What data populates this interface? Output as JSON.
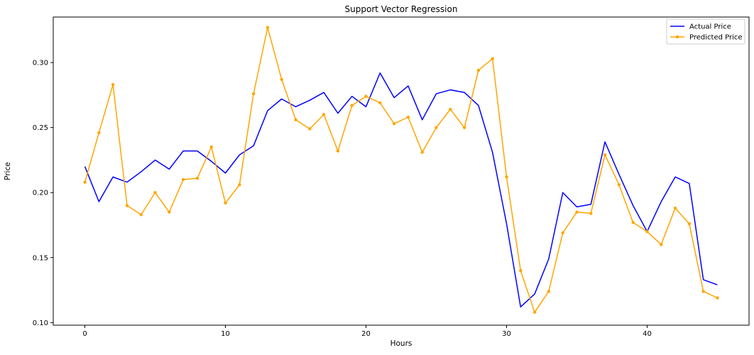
{
  "chart_data": {
    "type": "line",
    "title": "Support Vector Regression",
    "xlabel": "Hours",
    "ylabel": "Price",
    "xlim": [
      -2.25,
      47.25
    ],
    "ylim": [
      0.098,
      0.335
    ],
    "x_ticks": [
      0,
      10,
      20,
      30,
      40
    ],
    "y_ticks": [
      0.1,
      0.15,
      0.2,
      0.25,
      0.3
    ],
    "y_tick_labels": [
      "0.10",
      "0.15",
      "0.20",
      "0.25",
      "0.30"
    ],
    "grid": false,
    "legend_position": "top-right",
    "series": [
      {
        "name": "Actual Price",
        "color": "#0000ff",
        "marker": "none",
        "x": [
          0,
          1,
          2,
          3,
          4,
          5,
          6,
          7,
          8,
          9,
          10,
          11,
          12,
          13,
          14,
          15,
          16,
          17,
          18,
          19,
          20,
          21,
          22,
          23,
          24,
          25,
          26,
          27,
          28,
          29,
          30,
          31,
          32,
          33,
          34,
          35,
          36,
          37,
          38,
          39,
          40,
          41,
          42,
          43,
          44,
          45
        ],
        "values": [
          0.22,
          0.193,
          0.212,
          0.208,
          0.216,
          0.225,
          0.218,
          0.232,
          0.232,
          0.224,
          0.215,
          0.229,
          0.236,
          0.263,
          0.272,
          0.266,
          0.271,
          0.277,
          0.261,
          0.274,
          0.266,
          0.292,
          0.273,
          0.282,
          0.256,
          0.276,
          0.279,
          0.277,
          0.267,
          0.231,
          0.176,
          0.112,
          0.122,
          0.149,
          0.2,
          0.189,
          0.191,
          0.239,
          0.214,
          0.19,
          0.17,
          0.193,
          0.212,
          0.207,
          0.133,
          0.129
        ]
      },
      {
        "name": "Predicted Price",
        "color": "#ffa500",
        "marker": "dot",
        "x": [
          0,
          1,
          2,
          3,
          4,
          5,
          6,
          7,
          8,
          9,
          10,
          11,
          12,
          13,
          14,
          15,
          16,
          17,
          18,
          19,
          20,
          21,
          22,
          23,
          24,
          25,
          26,
          27,
          28,
          29,
          30,
          31,
          32,
          33,
          34,
          35,
          36,
          37,
          38,
          39,
          40,
          41,
          42,
          43,
          44,
          45
        ],
        "values": [
          0.208,
          0.246,
          0.283,
          0.19,
          0.183,
          0.2,
          0.185,
          0.21,
          0.211,
          0.235,
          0.192,
          0.206,
          0.276,
          0.327,
          0.287,
          0.256,
          0.249,
          0.26,
          0.232,
          0.267,
          0.274,
          0.269,
          0.253,
          0.258,
          0.231,
          0.25,
          0.264,
          0.25,
          0.294,
          0.303,
          0.212,
          0.14,
          0.108,
          0.124,
          0.169,
          0.185,
          0.184,
          0.229,
          0.206,
          0.177,
          0.17,
          0.16,
          0.188,
          0.176,
          0.124,
          0.119
        ]
      }
    ]
  }
}
